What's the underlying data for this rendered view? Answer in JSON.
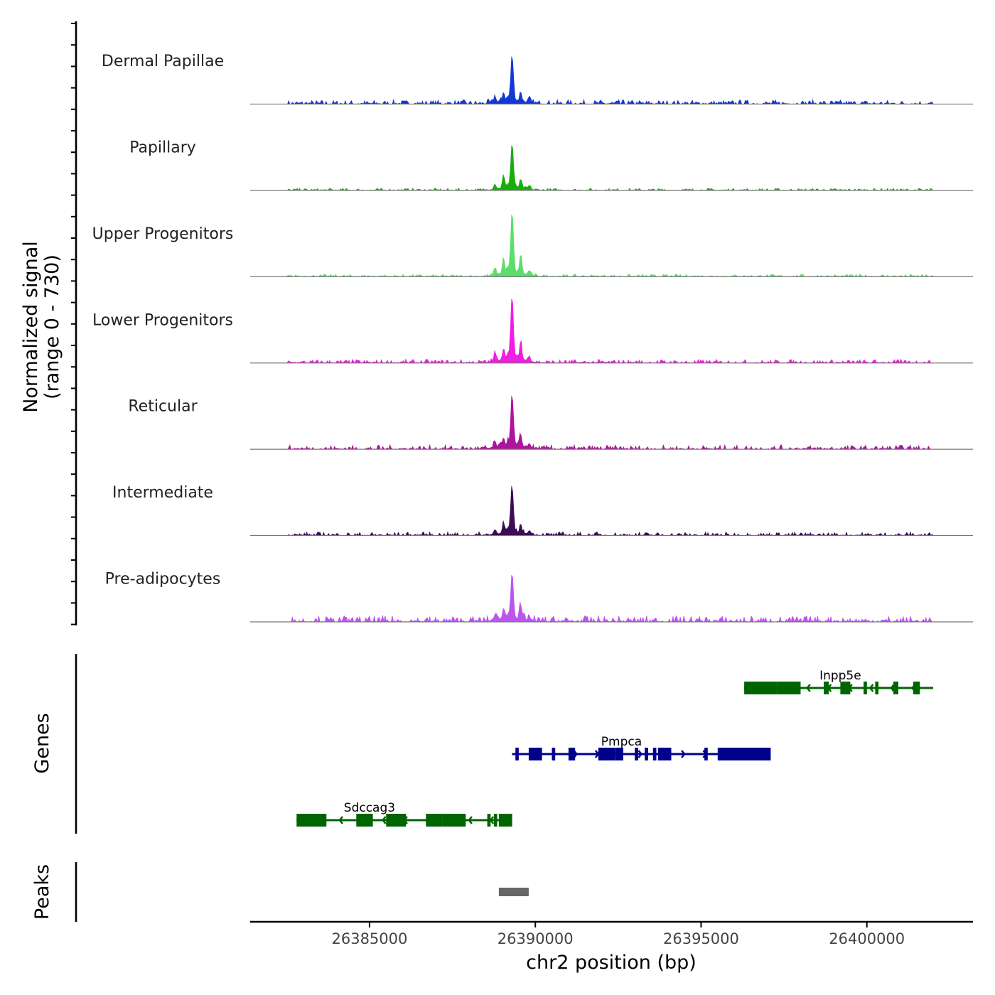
{
  "chart_data": [
    {
      "type": "area",
      "panel": "coverage",
      "ylabel": "Normalized signal",
      "ylabel2": "(range 0 - 730)",
      "ylim": [
        0,
        730
      ],
      "xlim": [
        26381400,
        26403200
      ],
      "region_x": [
        26381400,
        26403200
      ],
      "peak_center_bp": 26389300,
      "series": [
        {
          "name": "Dermal Papillae",
          "color": "#1338d4",
          "peak": 0.78,
          "side_peaks": [
            0.12,
            0.16,
            0.06,
            0.16,
            0.06
          ],
          "noise": 0.035,
          "noise_range": [
            26382500,
            26402000
          ]
        },
        {
          "name": "Papillary",
          "color": "#1aac0b",
          "peak": 0.76,
          "side_peaks": [
            0.09,
            0.22,
            0.05,
            0.13,
            0.06
          ],
          "noise": 0.018,
          "noise_range": [
            26382500,
            26402000
          ]
        },
        {
          "name": "Upper Progenitors",
          "color": "#5ddd6a",
          "peak": 1.05,
          "side_peaks": [
            0.12,
            0.27,
            0.08,
            0.34,
            0.08
          ],
          "noise": 0.02,
          "noise_range": [
            26382500,
            26402000
          ]
        },
        {
          "name": "Lower Progenitors",
          "color": "#f21ce2",
          "peak": 1.07,
          "side_peaks": [
            0.15,
            0.18,
            0.08,
            0.34,
            0.1
          ],
          "noise": 0.03,
          "noise_range": [
            26382500,
            26402000
          ]
        },
        {
          "name": "Reticular",
          "color": "#ad149d",
          "peak": 0.86,
          "side_peaks": [
            0.1,
            0.15,
            0.07,
            0.2,
            0.08
          ],
          "noise": 0.035,
          "noise_range": [
            26382500,
            26402000
          ]
        },
        {
          "name": "Intermediate",
          "color": "#3b0d52",
          "peak": 0.79,
          "side_peaks": [
            0.08,
            0.18,
            0.06,
            0.14,
            0.07
          ],
          "noise": 0.03,
          "noise_range": [
            26382500,
            26402000
          ]
        },
        {
          "name": "Pre-adipocytes",
          "color": "#bb55ee",
          "peak": 0.8,
          "side_peaks": [
            0.1,
            0.19,
            0.07,
            0.23,
            0.07
          ],
          "noise": 0.05,
          "noise_range": [
            26382500,
            26402000
          ]
        }
      ]
    },
    {
      "type": "gene-track",
      "panel": "genes",
      "ylabel": "Genes",
      "genes": [
        {
          "name": "Inpp5e",
          "strand": "-",
          "color": "#006400",
          "start": 26396300,
          "end": 26402000,
          "row": 1,
          "label_at": 26399200,
          "exons": [
            [
              26396300,
              26397300
            ],
            [
              26397300,
              26398000
            ],
            [
              26398700,
              26398850
            ],
            [
              26399200,
              26399500
            ],
            [
              26399900,
              26400000
            ],
            [
              26400250,
              26400350
            ],
            [
              26400800,
              26400950
            ],
            [
              26401400,
              26401600
            ]
          ]
        },
        {
          "name": "Pmpca",
          "strand": "+",
          "color": "#00008b",
          "start": 26389300,
          "end": 26397100,
          "row": 2,
          "label_at": 26392600,
          "exons": [
            [
              26389400,
              26389500
            ],
            [
              26389800,
              26390200
            ],
            [
              26390500,
              26390600
            ],
            [
              26391000,
              26391200
            ],
            [
              26391900,
              26392400
            ],
            [
              26392400,
              26392650
            ],
            [
              26393000,
              26393100
            ],
            [
              26393300,
              26393400
            ],
            [
              26393550,
              26393650
            ],
            [
              26393700,
              26394100
            ],
            [
              26395100,
              26395200
            ],
            [
              26395500,
              26397100
            ]
          ]
        },
        {
          "name": "Sdccag3",
          "strand": "-",
          "color": "#006400",
          "start": 26382800,
          "end": 26389300,
          "row": 3,
          "label_at": 26385000,
          "exons": [
            [
              26382800,
              26383700
            ],
            [
              26384600,
              26385100
            ],
            [
              26385500,
              26386100
            ],
            [
              26386700,
              26387200
            ],
            [
              26387200,
              26387900
            ],
            [
              26388550,
              26388650
            ],
            [
              26388750,
              26388850
            ],
            [
              26388900,
              26389300
            ]
          ]
        }
      ]
    },
    {
      "type": "interval",
      "panel": "peaks",
      "ylabel": "Peaks",
      "color": "#666666",
      "peaks": [
        [
          26388900,
          26389800
        ]
      ]
    }
  ],
  "x_axis": {
    "label": "chr2 position (bp)",
    "ticks": [
      {
        "value": 26385000,
        "label": "26385000"
      },
      {
        "value": 26390000,
        "label": "26390000"
      },
      {
        "value": 26395000,
        "label": "26395000"
      },
      {
        "value": 26400000,
        "label": "26400000"
      }
    ]
  }
}
